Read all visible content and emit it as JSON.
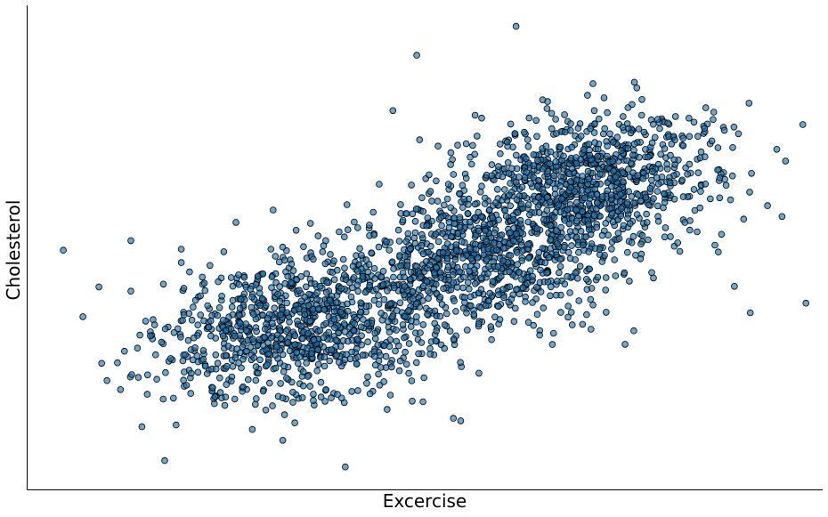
{
  "chart_data": {
    "type": "scatter",
    "title": "",
    "xlabel": "Excercise",
    "ylabel": "Cholesterol",
    "grid": false,
    "legend": "none",
    "xticks": false,
    "yticks": false,
    "xlim": [
      0,
      100
    ],
    "ylim": [
      0,
      100
    ],
    "point_color": "#1f77b4",
    "point_opacity": 0.65,
    "edge_color": "#000000",
    "approx_point_count": 2600,
    "clusters": [
      {
        "center": [
          34,
          33
        ],
        "spread": [
          8.5,
          8
        ],
        "corr": 0.25,
        "n": 900
      },
      {
        "center": [
          57,
          48
        ],
        "spread": [
          9,
          8.5
        ],
        "corr": 0.3,
        "n": 850
      },
      {
        "center": [
          71,
          64
        ],
        "spread": [
          8,
          7
        ],
        "corr": 0.2,
        "n": 850
      }
    ],
    "outliers": [
      {
        "x": 4.5,
        "y": 49.5
      },
      {
        "x": 13,
        "y": 51.5
      },
      {
        "x": 13,
        "y": 41
      },
      {
        "x": 16,
        "y": 34
      },
      {
        "x": 18,
        "y": 27
      },
      {
        "x": 40,
        "y": 4.5
      },
      {
        "x": 61.5,
        "y": 96
      },
      {
        "x": 49,
        "y": 90
      },
      {
        "x": 89,
        "y": 42
      },
      {
        "x": 95,
        "y": 56.5
      },
      {
        "x": 98,
        "y": 38.5
      },
      {
        "x": 91,
        "y": 36.5
      },
      {
        "x": 46,
        "y": 78.5
      }
    ]
  }
}
